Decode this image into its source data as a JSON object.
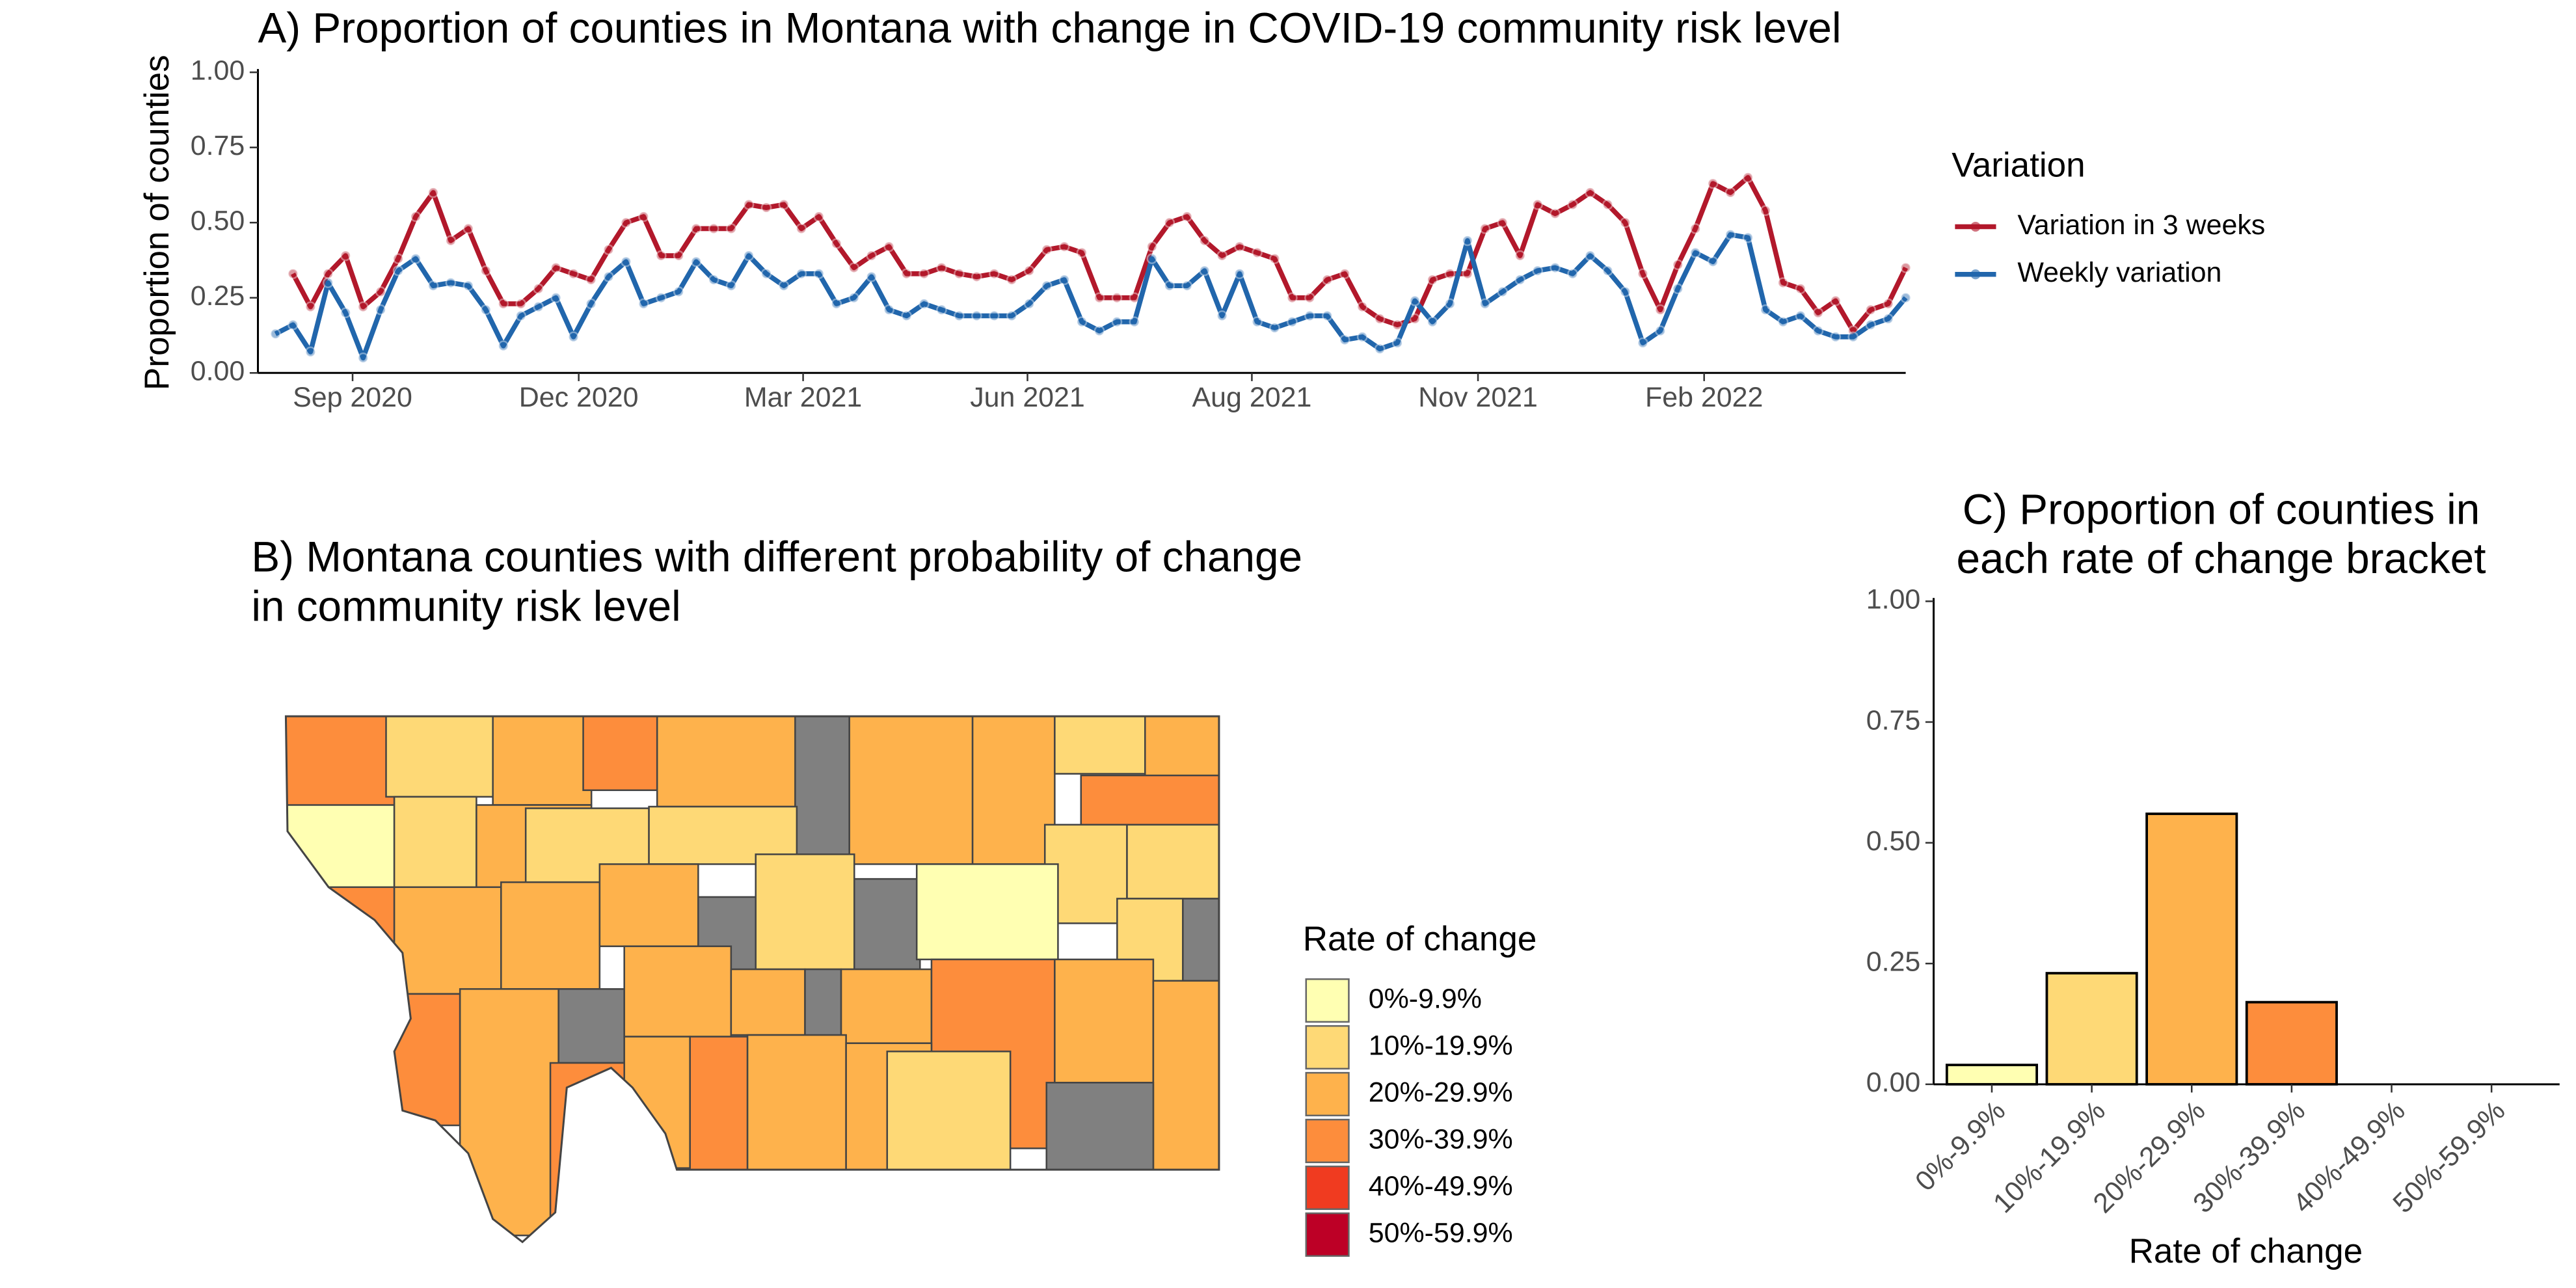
{
  "chart_data": [
    {
      "type": "line",
      "title": "A) Proportion of counties in Montana with change in COVID-19 community risk level",
      "ylabel": "Proportion of counties",
      "legend_title": "Variation",
      "x": [
        0,
        1,
        2,
        3,
        4,
        5,
        6,
        7,
        8,
        9,
        10,
        11,
        12,
        13,
        14,
        15,
        16,
        17,
        18,
        19,
        20,
        21,
        22,
        23,
        24,
        25,
        26,
        27,
        28,
        29,
        30,
        31,
        32,
        33,
        34,
        35,
        36,
        37,
        38,
        39,
        40,
        41,
        42,
        43,
        44,
        45,
        46,
        47,
        48,
        49,
        50,
        51,
        52,
        53,
        54,
        55,
        56,
        57,
        58,
        59,
        60,
        61,
        62,
        63,
        64,
        65,
        66,
        67,
        68,
        69,
        70,
        71,
        72,
        73,
        74,
        75,
        76,
        77,
        78,
        79,
        80,
        81,
        82,
        83,
        84,
        85,
        86,
        87,
        88,
        89,
        90,
        91,
        92,
        93
      ],
      "xlim": [
        -1,
        93
      ],
      "xticks": [
        {
          "value": 4.4,
          "label": "Sep 2020"
        },
        {
          "value": 17.3,
          "label": "Dec 2020"
        },
        {
          "value": 30.1,
          "label": "Mar 2021"
        },
        {
          "value": 42.9,
          "label": "Jun 2021"
        },
        {
          "value": 55.7,
          "label": "Aug 2021"
        },
        {
          "value": 68.6,
          "label": "Nov 2021"
        },
        {
          "value": 81.5,
          "label": "Feb 2022"
        }
      ],
      "ylim": [
        0,
        1
      ],
      "yticks": [
        {
          "value": 0,
          "label": "0.00"
        },
        {
          "value": 0.25,
          "label": "0.25"
        },
        {
          "value": 0.5,
          "label": "0.50"
        },
        {
          "value": 0.75,
          "label": "0.75"
        },
        {
          "value": 1,
          "label": "1.00"
        }
      ],
      "series": [
        {
          "name": "Variation in 3 weeks",
          "color": "#b2182b",
          "values": [
            null,
            0.33,
            0.22,
            0.33,
            0.39,
            0.22,
            0.27,
            0.38,
            0.52,
            0.6,
            0.44,
            0.48,
            0.34,
            0.23,
            0.23,
            0.28,
            0.35,
            0.33,
            0.31,
            0.41,
            0.5,
            0.52,
            0.39,
            0.39,
            0.48,
            0.48,
            0.48,
            0.56,
            0.55,
            0.56,
            0.48,
            0.52,
            0.43,
            0.35,
            0.39,
            0.42,
            0.33,
            0.33,
            0.35,
            0.33,
            0.32,
            0.33,
            0.31,
            0.34,
            0.41,
            0.42,
            0.4,
            0.25,
            0.25,
            0.25,
            0.42,
            0.5,
            0.52,
            0.44,
            0.39,
            0.42,
            0.4,
            0.38,
            0.25,
            0.25,
            0.31,
            0.33,
            0.22,
            0.18,
            0.16,
            0.18,
            0.31,
            0.33,
            0.33,
            0.48,
            0.5,
            0.39,
            0.56,
            0.53,
            0.56,
            0.6,
            0.56,
            0.5,
            0.33,
            0.21,
            0.36,
            0.48,
            0.63,
            0.6,
            0.65,
            0.54,
            0.3,
            0.28,
            0.2,
            0.24,
            0.14,
            0.21,
            0.23,
            0.35
          ]
        },
        {
          "name": "Weekly variation",
          "color": "#2166ac",
          "values": [
            0.13,
            0.16,
            0.07,
            0.3,
            0.2,
            0.05,
            0.21,
            0.34,
            0.38,
            0.29,
            0.3,
            0.29,
            0.21,
            0.09,
            0.19,
            0.22,
            0.25,
            0.12,
            0.23,
            0.32,
            0.37,
            0.23,
            0.25,
            0.27,
            0.37,
            0.31,
            0.29,
            0.39,
            0.33,
            0.29,
            0.33,
            0.33,
            0.23,
            0.25,
            0.32,
            0.21,
            0.19,
            0.23,
            0.21,
            0.19,
            0.19,
            0.19,
            0.19,
            0.23,
            0.29,
            0.31,
            0.17,
            0.14,
            0.17,
            0.17,
            0.38,
            0.29,
            0.29,
            0.34,
            0.19,
            0.33,
            0.17,
            0.15,
            0.17,
            0.19,
            0.19,
            0.11,
            0.12,
            0.08,
            0.1,
            0.24,
            0.17,
            0.23,
            0.44,
            0.23,
            0.27,
            0.31,
            0.34,
            0.35,
            0.33,
            0.39,
            0.34,
            0.27,
            0.1,
            0.14,
            0.28,
            0.4,
            0.37,
            0.46,
            0.45,
            0.21,
            0.17,
            0.19,
            0.14,
            0.12,
            0.12,
            0.16,
            0.18,
            0.25
          ]
        }
      ]
    },
    {
      "type": "bar",
      "title": [
        "C) Proportion of counties in",
        "each rate of change bracket"
      ],
      "xlabel": "Rate of change",
      "categories": [
        "0%-9.9%",
        "10%-19.9%",
        "20%-29.9%",
        "30%-39.9%",
        "40%-49.9%",
        "50%-59.9%"
      ],
      "values": [
        0.04,
        0.23,
        0.56,
        0.17,
        0,
        0
      ],
      "colors": [
        "#ffffb2",
        "#fed976",
        "#feb24c",
        "#fd8d3c",
        "#f03b20",
        "#bd0026"
      ],
      "ylim": [
        0,
        1
      ],
      "yticks": [
        {
          "value": 0,
          "label": "0.00"
        },
        {
          "value": 0.25,
          "label": "0.25"
        },
        {
          "value": 0.5,
          "label": "0.50"
        },
        {
          "value": 0.75,
          "label": "0.75"
        },
        {
          "value": 1,
          "label": "1.00"
        }
      ]
    }
  ],
  "map": {
    "title": [
      "B)  Montana counties with different probability of change",
      "in community risk level"
    ],
    "legend_title": "Rate of change",
    "legend": [
      {
        "label": "0%-9.9%",
        "color": "#ffffb2"
      },
      {
        "label": "10%-19.9%",
        "color": "#fed976"
      },
      {
        "label": "20%-29.9%",
        "color": "#feb24c"
      },
      {
        "label": "30%-39.9%",
        "color": "#fd8d3c"
      },
      {
        "label": "40%-49.9%",
        "color": "#f03b20"
      },
      {
        "label": "50%-59.9%",
        "color": "#bd0026"
      }
    ]
  }
}
